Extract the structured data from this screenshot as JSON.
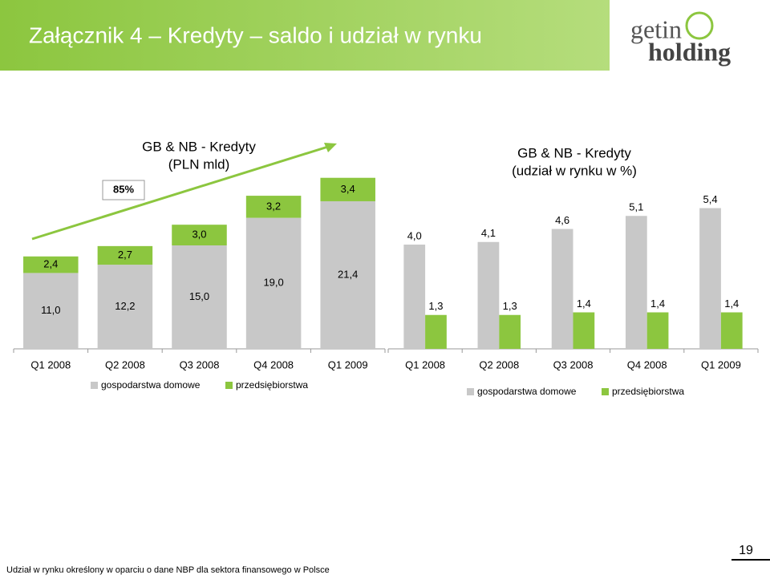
{
  "header": {
    "title": "Załącznik 4 – Kredyty – saldo i udział w rynku",
    "logo_top": "getin",
    "logo_bottom": "holding"
  },
  "footnote": "Udział w rynku określony w oparciu o dane NBP dla sektora finansowego w Polsce",
  "page_number": "19",
  "chart_data": [
    {
      "type": "stacked-bar",
      "title": "GB & NB - Kredyty",
      "subtitle": "(PLN mld)",
      "annotation": "85%",
      "categories": [
        "Q1 2008",
        "Q2 2008",
        "Q3 2008",
        "Q4 2008",
        "Q1 2009"
      ],
      "series": [
        {
          "name": "gospodarstwa domowe",
          "color": "#c8c8c8",
          "values": [
            11.0,
            12.2,
            15.0,
            19.0,
            21.4
          ],
          "value_labels": [
            "11,0",
            "12,2",
            "15,0",
            "19,0",
            "21,4"
          ]
        },
        {
          "name": "przedsiębiorstwa",
          "color": "#8cc63f",
          "values": [
            2.4,
            2.7,
            3.0,
            3.2,
            3.4
          ],
          "value_labels": [
            "2,4",
            "2,7",
            "3,0",
            "3,2",
            "3,4"
          ]
        }
      ]
    },
    {
      "type": "grouped-bar",
      "title": "GB & NB - Kredyty",
      "subtitle": "(udział w rynku w %)",
      "categories": [
        "Q1 2008",
        "Q2 2008",
        "Q3 2008",
        "Q4 2008",
        "Q1 2009"
      ],
      "series": [
        {
          "name": "gospodarstwa domowe",
          "color": "#c8c8c8",
          "values": [
            4.0,
            4.1,
            4.6,
            5.1,
            5.4
          ],
          "value_labels": [
            "4,0",
            "4,1",
            "4,6",
            "5,1",
            "5,4"
          ]
        },
        {
          "name": "przedsiębiorstwa",
          "color": "#8cc63f",
          "values": [
            1.3,
            1.3,
            1.4,
            1.4,
            1.4
          ],
          "value_labels": [
            "1,3",
            "1,3",
            "1,4",
            "1,4",
            "1,4"
          ]
        }
      ]
    }
  ]
}
